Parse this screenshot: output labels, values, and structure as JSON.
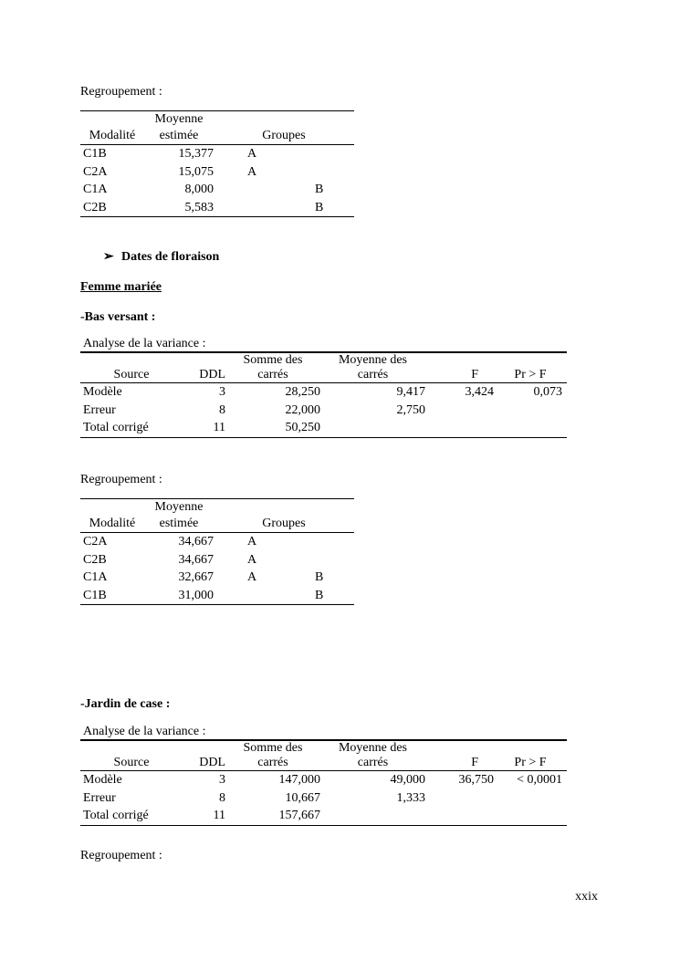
{
  "sections": {
    "regroupement_1": "Regroupement :",
    "bullet_heading": "Dates de floraison",
    "bullet_icon": "arrowhead-bullet-icon",
    "femme_mariee": "Femme mariée",
    "bas_versant": "-Bas versant :",
    "analyse_1": "Analyse de la variance :",
    "regroupement_2": "Regroupement :",
    "jardin_de_case": "-Jardin de case :",
    "analyse_2": "Analyse de la variance :",
    "regroupement_3": "Regroupement :"
  },
  "group_headers": {
    "modalite": "Modalité",
    "moyenne_1": "Moyenne",
    "moyenne_2": "estimée",
    "groupes": "Groupes"
  },
  "anova_headers": {
    "source": "Source",
    "ddl": "DDL",
    "somme_1": "Somme des",
    "somme_2": "carrés",
    "moyenne_1": "Moyenne des",
    "moyenne_2": "carrés",
    "f": "F",
    "pr": "Pr > F"
  },
  "group_table_1": [
    [
      "C1B",
      "15,377",
      "A",
      ""
    ],
    [
      "C2A",
      "15,075",
      "A",
      ""
    ],
    [
      "C1A",
      "8,000",
      "",
      "B"
    ],
    [
      "C2B",
      "5,583",
      "",
      "B"
    ]
  ],
  "anova_table_1": [
    [
      "Modèle",
      "3",
      "28,250",
      "9,417",
      "3,424",
      "0,073"
    ],
    [
      "Erreur",
      "8",
      "22,000",
      "2,750",
      "",
      ""
    ],
    [
      "Total corrigé",
      "11",
      "50,250",
      "",
      "",
      ""
    ]
  ],
  "group_table_2": [
    [
      "C2A",
      "34,667",
      "A",
      ""
    ],
    [
      "C2B",
      "34,667",
      "A",
      ""
    ],
    [
      "C1A",
      "32,667",
      "A",
      "B"
    ],
    [
      "C1B",
      "31,000",
      "",
      "B"
    ]
  ],
  "anova_table_2": [
    [
      "Modèle",
      "3",
      "147,000",
      "49,000",
      "36,750",
      "< 0,0001"
    ],
    [
      "Erreur",
      "8",
      "10,667",
      "1,333",
      "",
      ""
    ],
    [
      "Total corrigé",
      "11",
      "157,667",
      "",
      "",
      ""
    ]
  ],
  "page_number": "xxix"
}
